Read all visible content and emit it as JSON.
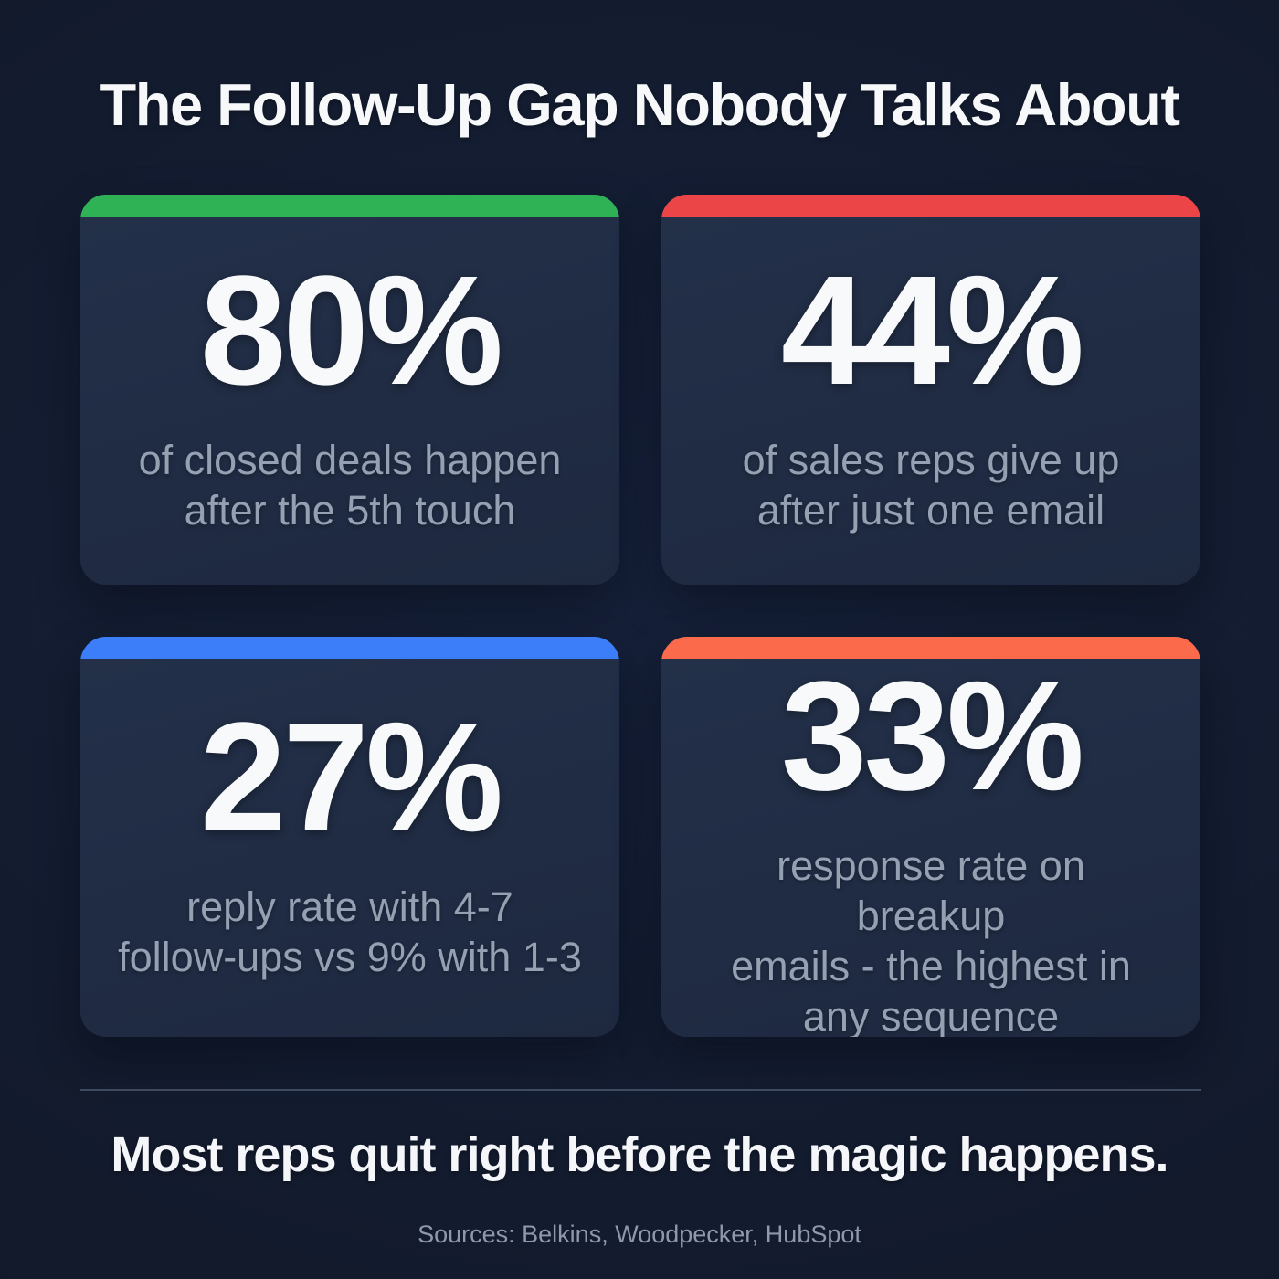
{
  "page": {
    "title": "The Follow-Up Gap Nobody Talks About",
    "headline": "Most reps quit right before the magic happens.",
    "sources": "Sources: Belkins, Woodpecker, HubSpot"
  },
  "colors": {
    "background": "#131b2e",
    "card_background": "#202c44",
    "divider": "#3e4a5f",
    "title_text": "#f6f8fa",
    "stat_text": "#f7f9fb",
    "description_text": "#95a0b2",
    "sources_text": "#8e99ab",
    "accent_green": "#2fb156",
    "accent_red": "#ec4547",
    "accent_blue": "#3c7efa",
    "accent_orange": "#fb6b4b"
  },
  "cards": [
    {
      "id": "closed-deals",
      "accent": "#2fb156",
      "value": "80%",
      "description": [
        "of closed deals happen",
        "after the 5th touch"
      ]
    },
    {
      "id": "reps-give-up",
      "accent": "#ec4547",
      "value": "44%",
      "description": [
        "of sales reps give up",
        "after just one email"
      ]
    },
    {
      "id": "reply-rate",
      "accent": "#3c7efa",
      "value": "27%",
      "description": [
        "reply rate with 4-7",
        "follow-ups vs 9% with 1-3"
      ]
    },
    {
      "id": "breakup-emails",
      "accent": "#fb6b4b",
      "value": "33%",
      "description": [
        "response rate on breakup",
        "emails - the highest in",
        "any sequence"
      ]
    }
  ],
  "chart_data": {
    "type": "table",
    "title": "The Follow-Up Gap Nobody Talks About",
    "stats": [
      {
        "value_pct": 80,
        "label": "of closed deals happen after the 5th touch",
        "accent_color": "#2fb156"
      },
      {
        "value_pct": 44,
        "label": "of sales reps give up after just one email",
        "accent_color": "#ec4547"
      },
      {
        "value_pct": 27,
        "label": "reply rate with 4-7 follow-ups vs 9% with 1-3",
        "accent_color": "#3c7efa",
        "comparison_pct": 9
      },
      {
        "value_pct": 33,
        "label": "response rate on breakup emails - the highest in any sequence",
        "accent_color": "#fb6b4b"
      }
    ],
    "footnote": "Most reps quit right before the magic happens.",
    "sources": [
      "Belkins",
      "Woodpecker",
      "HubSpot"
    ]
  }
}
